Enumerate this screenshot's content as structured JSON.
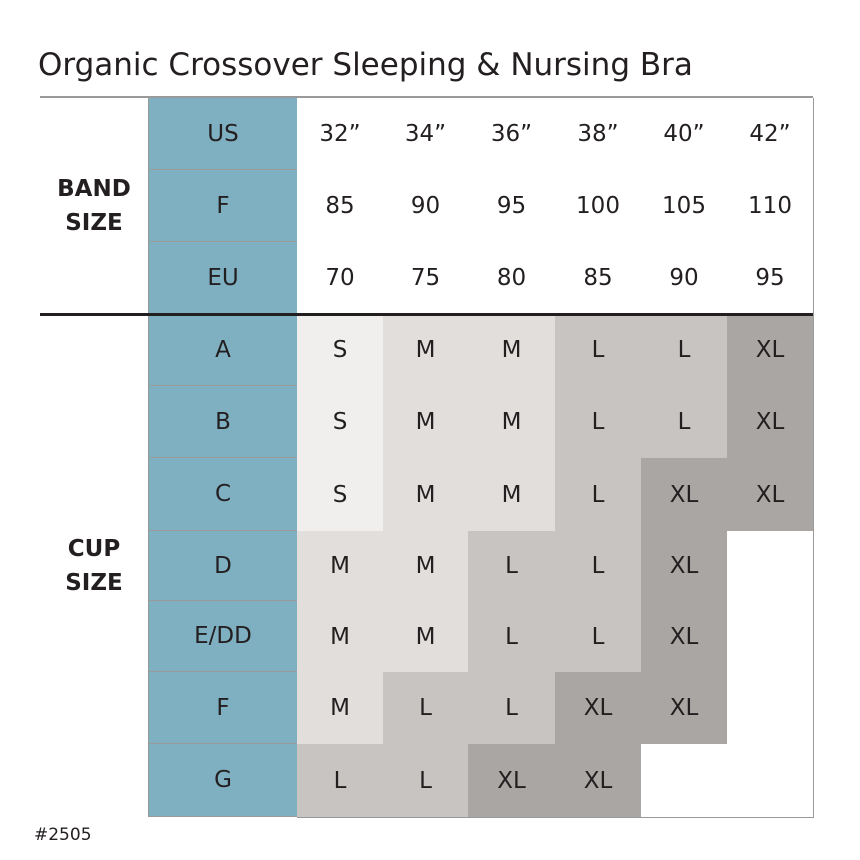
{
  "title": "Organic Crossover Sleeping & Nursing Bra",
  "band": {
    "label": "BAND SIZE",
    "rows": [
      {
        "name": "US",
        "cells": [
          "32”",
          "34”",
          "36”",
          "38”",
          "40”",
          "42”"
        ]
      },
      {
        "name": "F",
        "cells": [
          "85",
          "90",
          "95",
          "100",
          "105",
          "110"
        ]
      },
      {
        "name": "EU",
        "cells": [
          "70",
          "75",
          "80",
          "85",
          "90",
          "95"
        ]
      }
    ]
  },
  "cup": {
    "label": "CUP SIZE",
    "rows": [
      {
        "name": "A",
        "cells": [
          "S",
          "M",
          "M",
          "L",
          "L",
          "XL"
        ]
      },
      {
        "name": "B",
        "cells": [
          "S",
          "M",
          "M",
          "L",
          "L",
          "XL"
        ]
      },
      {
        "name": "C",
        "cells": [
          "S",
          "M",
          "M",
          "L",
          "XL",
          "XL"
        ]
      },
      {
        "name": "D",
        "cells": [
          "M",
          "M",
          "L",
          "L",
          "XL",
          null
        ]
      },
      {
        "name": "E/DD",
        "cells": [
          "M",
          "M",
          "L",
          "L",
          "XL",
          null
        ]
      },
      {
        "name": "F",
        "cells": [
          "M",
          "L",
          "L",
          "XL",
          "XL",
          null
        ]
      },
      {
        "name": "G",
        "cells": [
          "L",
          "L",
          "XL",
          "XL",
          null,
          null
        ]
      }
    ]
  },
  "size_colors": {
    "S": "#f1efee",
    "M": "#e1dedc",
    "L": "#c8c4c2",
    "XL": "#aaa6a4"
  },
  "footer": "#2505"
}
